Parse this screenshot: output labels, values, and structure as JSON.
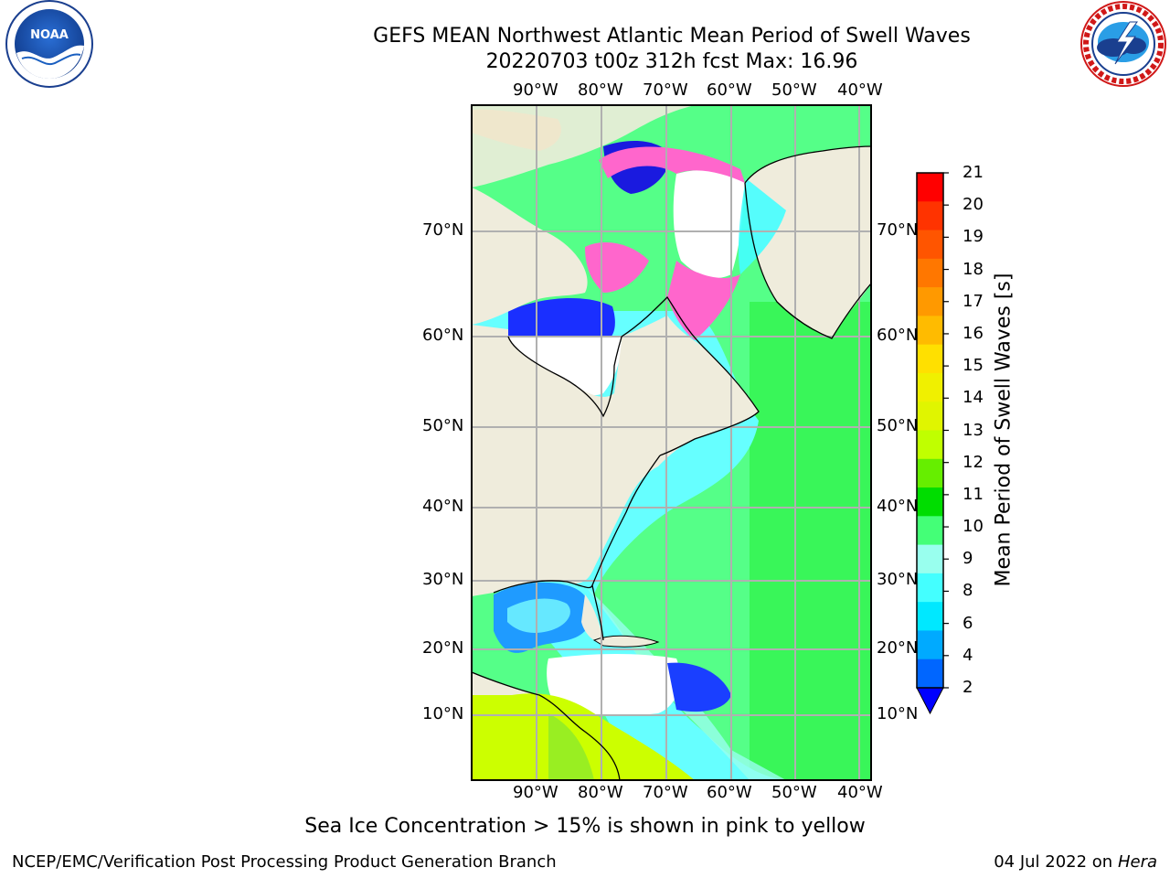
{
  "header": {
    "title_line1": "GEFS MEAN Northwest Atlantic Mean Period of Swell Waves",
    "title_line2": "20220703 t00z 312h fcst   Max: 16.96"
  },
  "logos": {
    "left": {
      "name": "NOAA",
      "ring_text": "NATIONAL OCEANIC AND ATMOSPHERIC ADMINISTRATION",
      "bottom_text": "U.S. DEPARTMENT OF COMMERCE"
    },
    "right": {
      "ring_text": "NATIONAL WEATHER SERVICE"
    }
  },
  "map": {
    "lon_ticks": [
      "90°W",
      "80°W",
      "70°W",
      "60°W",
      "50°W",
      "40°W"
    ],
    "lat_ticks": [
      "70°N",
      "60°N",
      "50°N",
      "40°N",
      "30°N",
      "20°N",
      "10°N"
    ],
    "colors": {
      "land": "#efecdc",
      "ice_free_cold": "#ffffff",
      "gridline": "#b0b0b0",
      "coast": "#000000"
    }
  },
  "colorbar": {
    "label": "Mean Period of Swell Waves [s]",
    "ticks": [
      "21",
      "20",
      "19",
      "18",
      "17",
      "16",
      "15",
      "14",
      "13",
      "12",
      "11",
      "10",
      "9",
      "8",
      "6",
      "4",
      "2"
    ],
    "colors_top_to_bottom": [
      "#ff0000",
      "#ff3300",
      "#ff5500",
      "#ff7700",
      "#ff9900",
      "#ffbb00",
      "#ffe000",
      "#f0f000",
      "#e0f500",
      "#c0ff00",
      "#66ee00",
      "#00dd00",
      "#44ff77",
      "#99ffee",
      "#44ffff",
      "#00e8ff",
      "#00aaff",
      "#0066ff"
    ],
    "extend_color": "#0000ff"
  },
  "caption": "Sea Ice Concentration > 15% is shown in pink to yellow",
  "footer": {
    "left": "NCEP/EMC/Verification Post Processing Product Generation Branch",
    "right_date": "04 Jul 2022 on ",
    "right_host": "Hera"
  }
}
